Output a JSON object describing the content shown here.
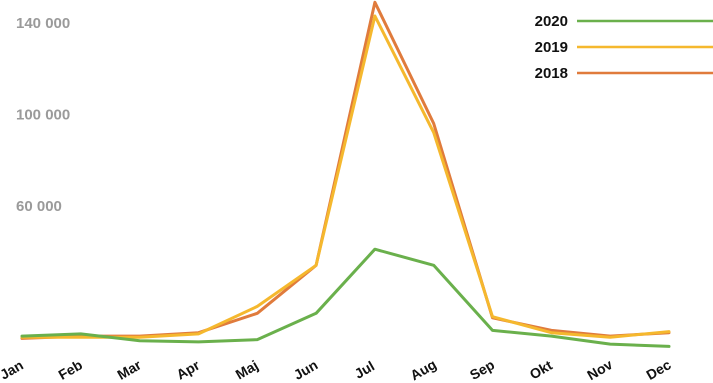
{
  "chart_data": {
    "type": "line",
    "categories": [
      "Jan",
      "Feb",
      "Mar",
      "Apr",
      "Maj",
      "Jun",
      "Jul",
      "Aug",
      "Sep",
      "Okt",
      "Nov",
      "Dec"
    ],
    "yticks": [
      "140 000",
      "100 000",
      "60 000"
    ],
    "ytick_values": [
      140000,
      100000,
      60000
    ],
    "ylim": [
      0,
      150000
    ],
    "grid": false,
    "legend_position": "top-right",
    "series": [
      {
        "name": "2020",
        "color": "#6ab04c",
        "values": [
          3000,
          4000,
          1000,
          500,
          1500,
          13000,
          41000,
          34000,
          5500,
          3000,
          -500,
          -1500
        ]
      },
      {
        "name": "2019",
        "color": "#f5b82e",
        "values": [
          2500,
          2500,
          2500,
          4000,
          16000,
          34000,
          143000,
          92000,
          11500,
          4500,
          2500,
          5000
        ]
      },
      {
        "name": "2018",
        "color": "#e07b3c",
        "values": [
          2000,
          3000,
          3000,
          4500,
          13000,
          34000,
          149000,
          96000,
          11000,
          5500,
          3000,
          4500
        ]
      }
    ]
  }
}
